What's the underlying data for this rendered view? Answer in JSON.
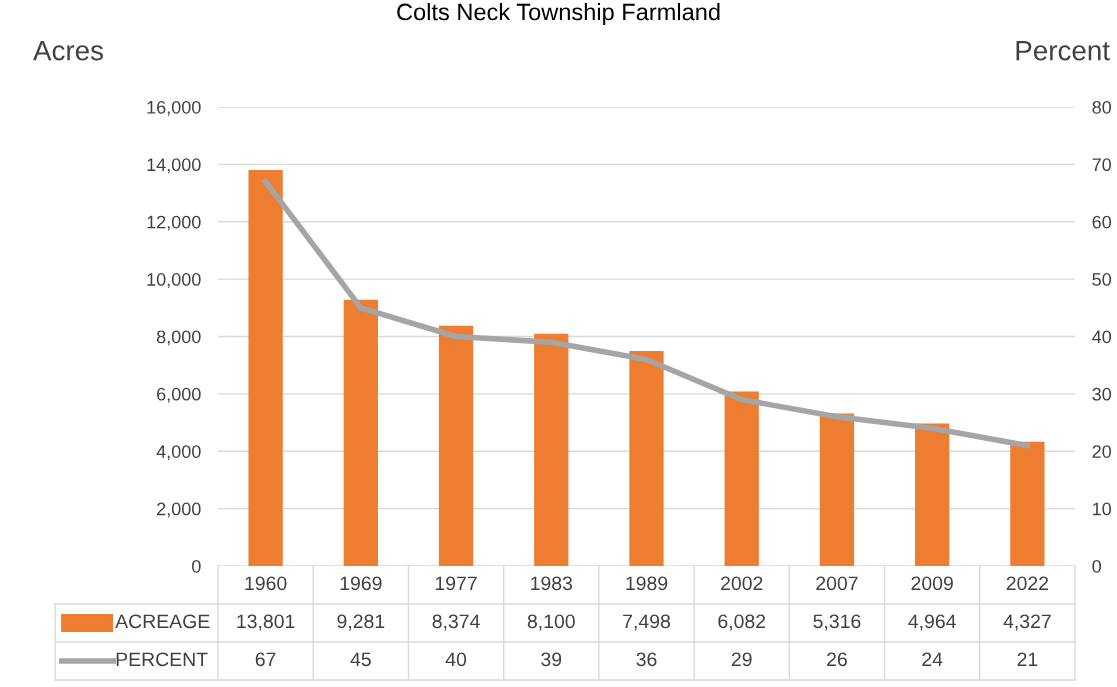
{
  "chart_data": {
    "type": "bar",
    "title": "Colts Neck Township Farmland",
    "categories": [
      "1960",
      "1969",
      "1977",
      "1983",
      "1989",
      "2002",
      "2007",
      "2009",
      "2022"
    ],
    "series": [
      {
        "name": "ACREAGE",
        "color": "#ed7d31",
        "values": [
          13801,
          9281,
          8374,
          8100,
          7498,
          6082,
          5316,
          4964,
          4327
        ],
        "value_labels": [
          "13,801",
          "9,281",
          "8,374",
          "8,100",
          "7,498",
          "6,082",
          "5,316",
          "4,964",
          "4,327"
        ]
      },
      {
        "name": "PERCENT",
        "type": "line",
        "axis": "y2",
        "color": "#a5a5a5",
        "values": [
          67,
          45,
          40,
          39,
          36,
          29,
          26,
          24,
          21
        ],
        "value_labels": [
          "67",
          "45",
          "40",
          "39",
          "36",
          "29",
          "26",
          "24",
          "21"
        ]
      }
    ],
    "ylabel": "Acres",
    "y2label": "Percent",
    "ylim": [
      0,
      16000
    ],
    "yticks": [
      0,
      {
        "value": 2000,
        "label": "2,000"
      },
      {
        "value": 4000,
        "label": "4,000"
      },
      {
        "value": 6000,
        "label": "6,000"
      },
      {
        "value": 8000,
        "label": "8,000"
      },
      {
        "value": 10000,
        "label": "10,000"
      },
      {
        "value": 12000,
        "label": "12,000"
      },
      {
        "value": 14000,
        "label": "14,000"
      },
      {
        "value": 16000,
        "label": "16,000"
      }
    ],
    "y2lim": [
      0,
      80
    ],
    "y2ticks": [
      0,
      10,
      20,
      30,
      40,
      50,
      60,
      70,
      80
    ],
    "grid": "y",
    "legend": "bottom",
    "marker": "none",
    "line_style": "solid"
  }
}
